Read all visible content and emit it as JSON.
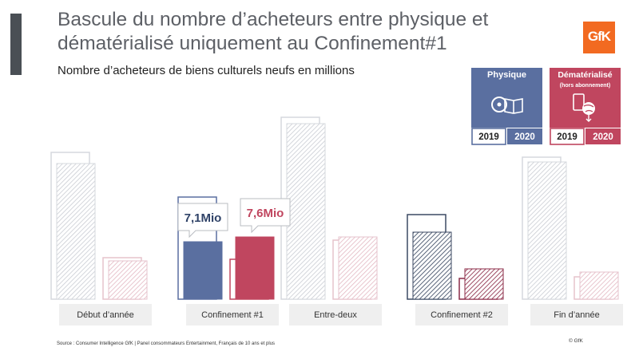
{
  "header": {
    "title": "Bascule du nombre d’acheteurs entre physique et dématérialisé uniquement au Confinement#1",
    "subtitle": "Nombre d’acheteurs de biens culturels neufs en millions",
    "logo_text": "GfK"
  },
  "legend": {
    "physical": {
      "label": "Physique",
      "icon": "disc-and-book-icon",
      "color": "#5a6fa0",
      "years": [
        "2019",
        "2020"
      ]
    },
    "digital": {
      "label": "Dématérialisé",
      "sublabel": "(hors abonnement)",
      "icon": "tablet-and-globe-icon",
      "color": "#c0465f",
      "years": [
        "2019",
        "2020"
      ]
    }
  },
  "chart_data": {
    "type": "bar",
    "categories": [
      "Début d’année",
      "Confinement #1",
      "Entre-deux",
      "Confinement #2",
      "Fin d’année"
    ],
    "series": [
      {
        "name": "Physique",
        "year": "2019",
        "values": [
          9.2,
          6.4,
          11.4,
          5.3,
          8.9
        ]
      },
      {
        "name": "Physique",
        "year": "2020",
        "values": [
          8.5,
          3.6,
          11.0,
          4.2,
          8.6
        ]
      },
      {
        "name": "Dématérialisé",
        "year": "2019",
        "values": [
          2.6,
          2.5,
          3.7,
          1.3,
          1.4
        ]
      },
      {
        "name": "Dématérialisé",
        "year": "2020",
        "values": [
          2.4,
          3.9,
          3.9,
          1.9,
          1.7
        ]
      }
    ],
    "highlight_category": "Confinement #1",
    "annotations": [
      {
        "category": "Confinement #1",
        "series": "Physique",
        "text": "7,1Mio"
      },
      {
        "category": "Confinement #1",
        "series": "Dématérialisé",
        "text": "7,6Mio"
      }
    ]
  },
  "footer": {
    "source": "Source : Consumer Intelligence GfK | Panel consommateurs Entertainment, Français de 10 ans et plus",
    "copyright": "© GfK"
  }
}
